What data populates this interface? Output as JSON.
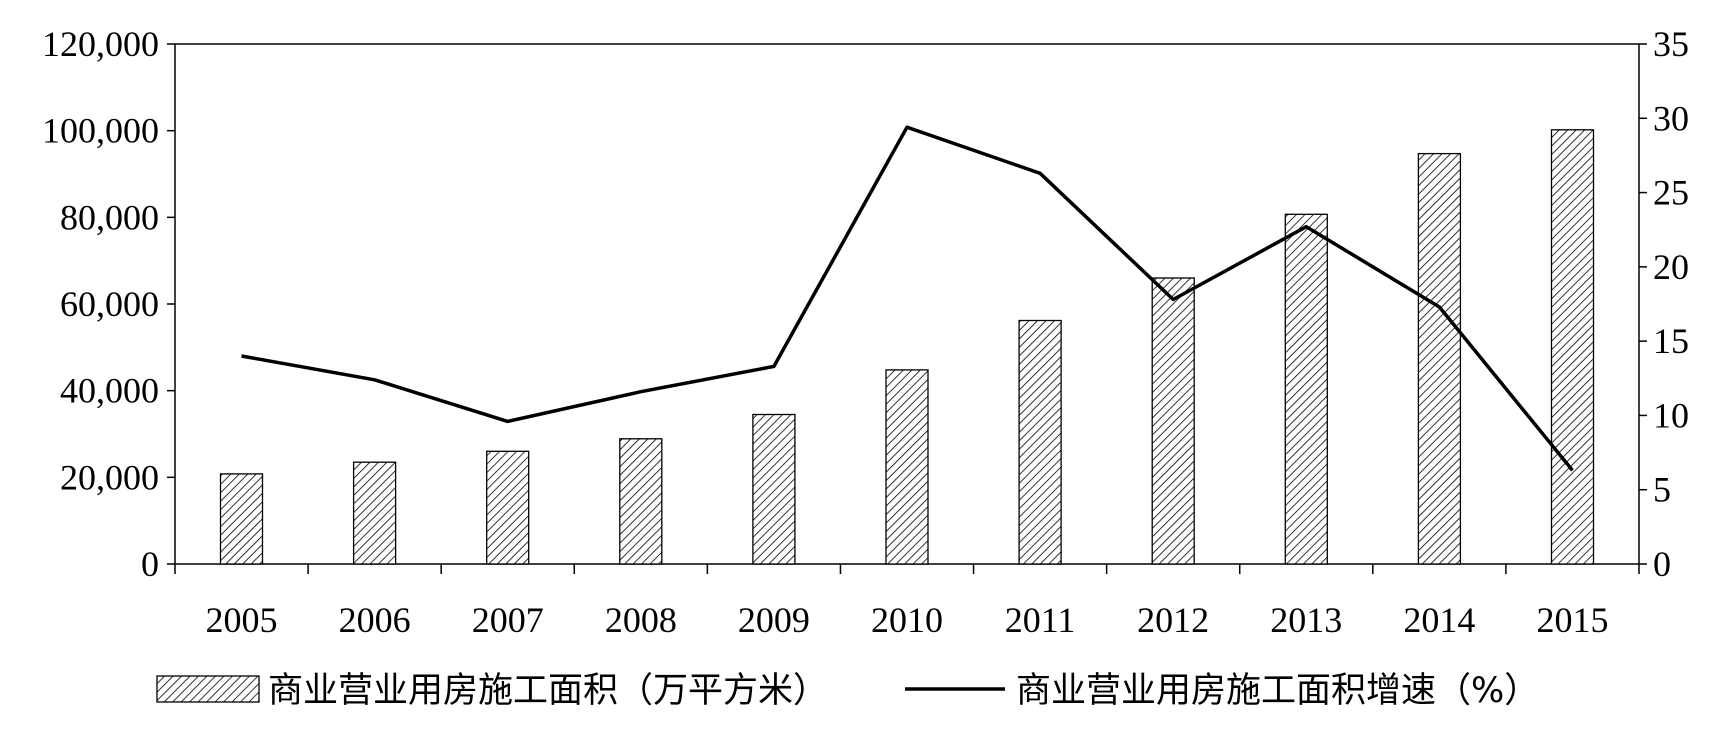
{
  "chart_data": {
    "type": "bar",
    "categories": [
      "2005",
      "2006",
      "2007",
      "2008",
      "2009",
      "2010",
      "2011",
      "2012",
      "2013",
      "2014",
      "2015"
    ],
    "series": [
      {
        "name": "商业营业用房施工面积（万平方米）",
        "type": "bar",
        "axis": "left",
        "values": [
          20800,
          23500,
          26000,
          28900,
          34500,
          44800,
          56200,
          66000,
          80700,
          94700,
          100200
        ]
      },
      {
        "name": "商业营业用房施工面积增速（%）",
        "type": "line",
        "axis": "right",
        "values": [
          14.0,
          12.4,
          9.6,
          11.6,
          13.3,
          29.4,
          26.3,
          17.8,
          22.7,
          17.3,
          6.3
        ]
      }
    ],
    "y_left": {
      "ylim": [
        0,
        120000
      ],
      "ticks": [
        0,
        20000,
        40000,
        60000,
        80000,
        100000,
        120000
      ],
      "tick_labels": [
        "0",
        "20,000",
        "40,000",
        "60,000",
        "80,000",
        "100,000",
        "120,000"
      ]
    },
    "y_right": {
      "ylim": [
        0,
        35
      ],
      "ticks": [
        0,
        5,
        10,
        15,
        20,
        25,
        30,
        35
      ],
      "tick_labels": [
        "0",
        "5",
        "10",
        "15",
        "20",
        "25",
        "30",
        "35"
      ]
    },
    "legend": {
      "position": "bottom"
    },
    "grid": false
  }
}
